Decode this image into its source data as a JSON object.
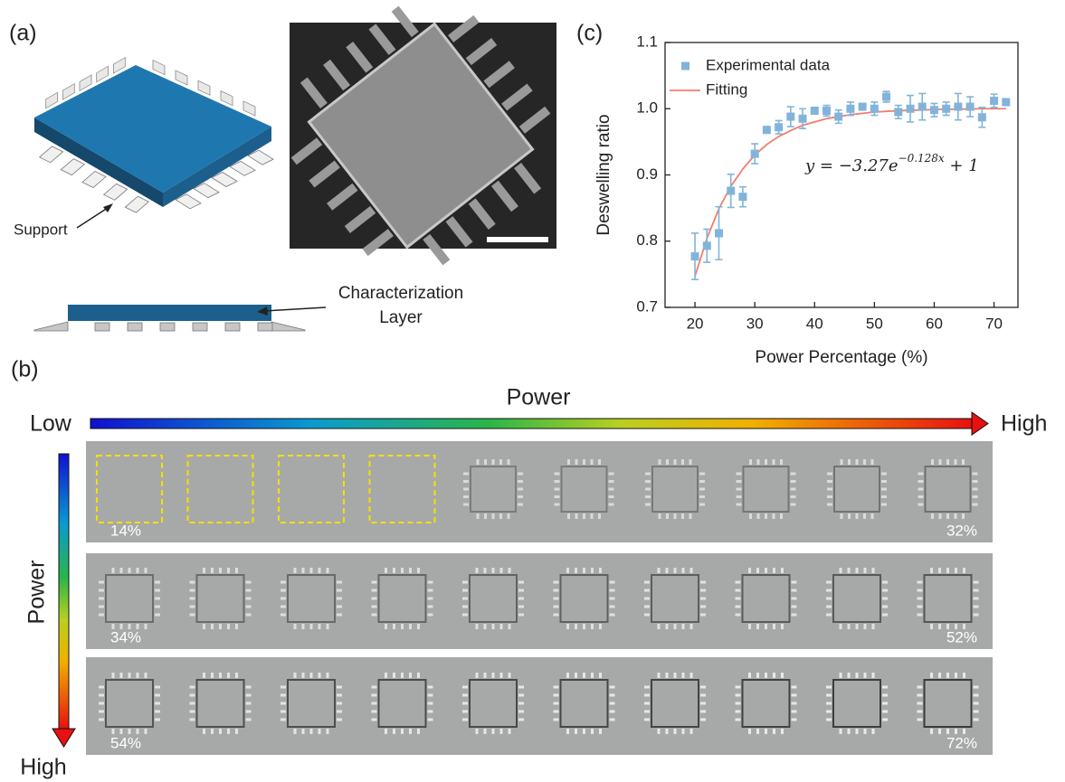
{
  "panel_a": {
    "label": "(a)",
    "support_label": "Support",
    "layer_label": [
      "Characterization",
      "Layer"
    ]
  },
  "panel_b": {
    "label": "(b)",
    "horizontal_axis": {
      "title": "Power",
      "low": "Low",
      "high": "High"
    },
    "vertical_axis": {
      "title": "Power",
      "high": "High"
    },
    "rows": [
      {
        "start": "14%",
        "end": "32%"
      },
      {
        "start": "34%",
        "end": "52%"
      },
      {
        "start": "54%",
        "end": "72%"
      }
    ]
  },
  "chart_data": {
    "type": "scatter",
    "label": "(c)",
    "xlabel": "Power Percentage (%)",
    "ylabel": "Deswelling ratio",
    "x": [
      20,
      22,
      24,
      26,
      28,
      30,
      32,
      34,
      36,
      38,
      40,
      42,
      44,
      46,
      48,
      50,
      52,
      54,
      56,
      58,
      60,
      62,
      64,
      66,
      68,
      70,
      72
    ],
    "series": [
      {
        "name": "Experimental data",
        "color": "#82b4da",
        "marker": "square",
        "values": [
          0.777,
          0.793,
          0.812,
          0.876,
          0.867,
          0.932,
          0.968,
          0.972,
          0.988,
          0.985,
          0.997,
          0.997,
          0.988,
          1.0,
          1.003,
          1.0,
          1.018,
          0.995,
          1.0,
          1.003,
          0.998,
          1.0,
          1.003,
          1.003,
          0.987,
          1.012,
          1.01
        ],
        "errors": [
          0.035,
          0.025,
          0.04,
          0.025,
          0.015,
          0.015,
          0.005,
          0.01,
          0.015,
          0.015,
          0.005,
          0.008,
          0.01,
          0.01,
          0.005,
          0.01,
          0.008,
          0.01,
          0.02,
          0.02,
          0.01,
          0.01,
          0.02,
          0.015,
          0.015,
          0.01,
          0.005
        ]
      },
      {
        "name": "Fitting",
        "color": "#f07e6e",
        "type": "line",
        "values": [
          0.747,
          0.804,
          0.849,
          0.883,
          0.909,
          0.93,
          0.946,
          0.958,
          0.967,
          0.975,
          0.98,
          0.985,
          0.988,
          0.991,
          0.993,
          0.995,
          0.996,
          0.997,
          0.9975,
          0.998,
          0.999,
          0.999,
          0.9995,
          0.9995,
          1.0,
          1.0,
          1.0
        ]
      }
    ],
    "xlim": [
      15,
      74
    ],
    "ylim": [
      0.7,
      1.1
    ],
    "xticks": [
      20,
      30,
      40,
      50,
      60,
      70
    ],
    "yticks": [
      0.7,
      0.8,
      0.9,
      {
        "value": 1,
        "label": "1.0"
      },
      1.1
    ],
    "legend": "upper left",
    "annotation": {
      "lhs": "y = −3.27e",
      "exponent": "−0.128x",
      "rhs": " + 1"
    }
  }
}
